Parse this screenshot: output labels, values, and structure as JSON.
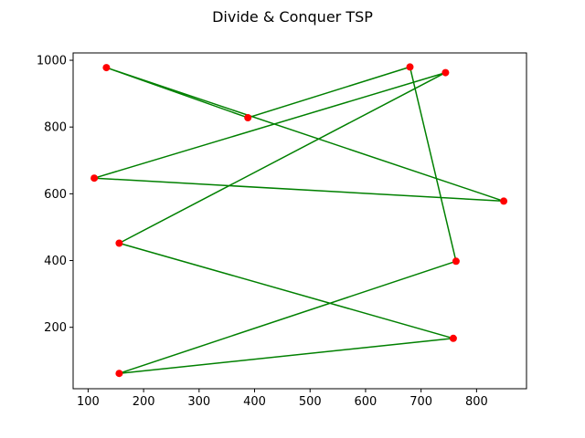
{
  "chart_data": {
    "type": "line",
    "title": "Divide & Conquer TSP",
    "xlabel": "",
    "ylabel": "",
    "xlim": [
      73,
      890
    ],
    "ylim": [
      16,
      1022
    ],
    "x_ticks": [
      100,
      200,
      300,
      400,
      500,
      600,
      700,
      800
    ],
    "y_ticks": [
      200,
      400,
      600,
      800,
      1000
    ],
    "grid": false,
    "points": [
      {
        "x": 133,
        "y": 978
      },
      {
        "x": 388,
        "y": 828
      },
      {
        "x": 111,
        "y": 647
      },
      {
        "x": 849,
        "y": 578
      },
      {
        "x": 156,
        "y": 452
      },
      {
        "x": 744,
        "y": 963
      },
      {
        "x": 680,
        "y": 980
      },
      {
        "x": 763,
        "y": 398
      },
      {
        "x": 156,
        "y": 62
      },
      {
        "x": 758,
        "y": 167
      }
    ],
    "route": [
      {
        "x": 133,
        "y": 978
      },
      {
        "x": 849,
        "y": 578
      },
      {
        "x": 111,
        "y": 647
      },
      {
        "x": 744,
        "y": 963
      },
      {
        "x": 156,
        "y": 452
      },
      {
        "x": 758,
        "y": 167
      },
      {
        "x": 156,
        "y": 62
      },
      {
        "x": 763,
        "y": 398
      },
      {
        "x": 680,
        "y": 980
      },
      {
        "x": 388,
        "y": 828
      },
      {
        "x": 133,
        "y": 978
      }
    ],
    "colors": {
      "route": "#008000",
      "points": "#ff0000"
    }
  }
}
